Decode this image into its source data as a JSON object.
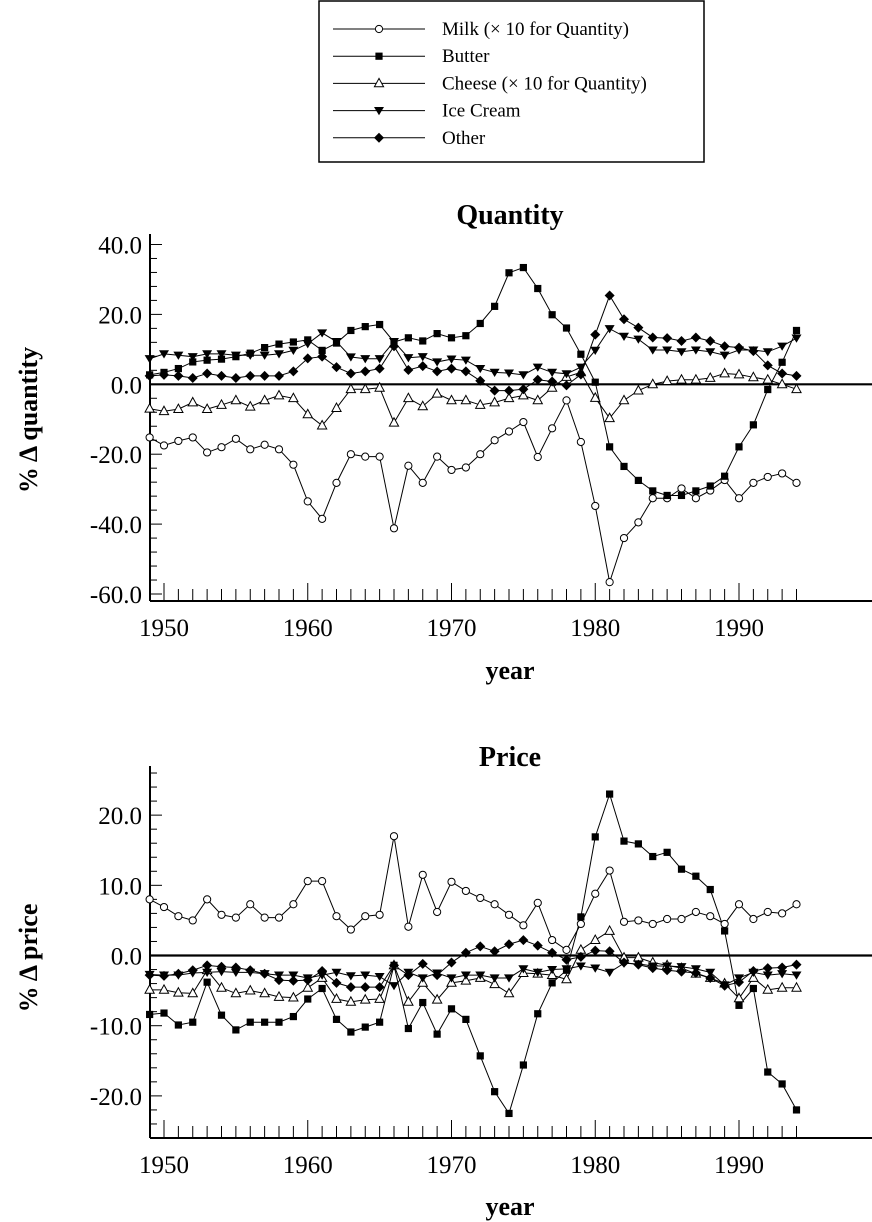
{
  "chart_data": [
    {
      "type": "line",
      "title": "Quantity",
      "xlabel": "year",
      "ylabel": "% Δ quantity",
      "xlim": [
        1948.5,
        1994.5
      ],
      "ylim": [
        -62,
        43
      ],
      "x_ticks": [
        1950,
        1960,
        1970,
        1980,
        1990
      ],
      "x_tick_labels": [
        "1950",
        "1960",
        "1970",
        "1980",
        "1990"
      ],
      "y_ticks": [
        -60,
        -40,
        -20,
        0,
        20,
        40
      ],
      "y_tick_labels": [
        "-60.0",
        "-40.0",
        "-20.0",
        "0.0",
        "20.0",
        "40.0"
      ],
      "grid": false,
      "zero_line": true,
      "x": [
        1949,
        1950,
        1951,
        1952,
        1953,
        1954,
        1955,
        1956,
        1957,
        1958,
        1959,
        1960,
        1961,
        1962,
        1963,
        1964,
        1965,
        1966,
        1967,
        1968,
        1969,
        1970,
        1971,
        1972,
        1973,
        1974,
        1975,
        1976,
        1977,
        1978,
        1979,
        1980,
        1981,
        1982,
        1983,
        1984,
        1985,
        1986,
        1987,
        1988,
        1989,
        1990,
        1991,
        1992,
        1993,
        1994
      ],
      "series": [
        {
          "name": "Milk  (×  10 for Quantity)",
          "marker": "circle-open",
          "values": [
            -15.2,
            -17.5,
            -16.2,
            -15.2,
            -19.5,
            -18,
            -15.6,
            -18.6,
            -17.3,
            -18.6,
            -23,
            -33.5,
            -38.5,
            -28.2,
            -20,
            -20.7,
            -20.7,
            -41.2,
            -23.3,
            -28.2,
            -20.7,
            -24.5,
            -23.8,
            -20,
            -16,
            -13.5,
            -10.8,
            -20.8,
            -12.6,
            -4.6,
            -16.5,
            -34.8,
            -56.6,
            -44,
            -39.5,
            -32.6,
            -32.6,
            -29.8,
            -32.6,
            -30.4,
            -27.4,
            -32.6,
            -28.2,
            -26.5,
            -25.5,
            -28.2
          ]
        },
        {
          "name": "Butter",
          "marker": "square-filled",
          "values": [
            2.7,
            3.4,
            4.5,
            6.4,
            6.9,
            7.2,
            7.9,
            8.9,
            10.5,
            11.5,
            12.1,
            12.7,
            9.7,
            11.8,
            15.4,
            16.5,
            17.1,
            12.1,
            13.3,
            12.4,
            14.5,
            13.3,
            13.9,
            17.4,
            22.3,
            31.9,
            33.4,
            27.4,
            19.9,
            16.1,
            8.6,
            0.6,
            -17.9,
            -23.5,
            -27.5,
            -30.5,
            -31.8,
            -31.8,
            -30.5,
            -29.1,
            -26.3,
            -17.9,
            -11.6,
            -1.5,
            6.3,
            15.4
          ]
        },
        {
          "name": "Cheese  (×  10 for Quantity)",
          "marker": "triangle-up-open",
          "values": [
            -7,
            -7.7,
            -7.1,
            -5.2,
            -7.1,
            -5.9,
            -4.6,
            -6.4,
            -4.6,
            -3.2,
            -4,
            -8.6,
            -11.8,
            -6.8,
            -1.4,
            -1.4,
            -1,
            -11,
            -4,
            -6.3,
            -2.7,
            -4.6,
            -4.6,
            -5.9,
            -5.2,
            -4,
            -3.2,
            -4.6,
            -1,
            2.1,
            3.4,
            -3.9,
            -9.7,
            -4.6,
            -1.8,
            0,
            0.9,
            1.3,
            1.3,
            1.8,
            3.1,
            2.8,
            2,
            1.3,
            0,
            -1.4
          ]
        },
        {
          "name": "Ice Cream",
          "marker": "triangle-down-filled",
          "values": [
            7.3,
            8.7,
            8.3,
            7.9,
            8.7,
            8.7,
            8.3,
            8.3,
            8.3,
            8.7,
            9.7,
            11.6,
            14.7,
            12.2,
            7.8,
            7.3,
            7.3,
            12.2,
            7.6,
            7.9,
            6.4,
            7.2,
            6.9,
            4.5,
            3.4,
            3.2,
            2.7,
            4.9,
            3.4,
            3,
            4.9,
            9.7,
            15.9,
            13.7,
            12.9,
            9.8,
            9.8,
            9.3,
            9.8,
            9.3,
            8.3,
            9.8,
            9.8,
            9.3,
            10.9,
            13.2
          ]
        },
        {
          "name": "Other",
          "marker": "diamond-filled",
          "values": [
            2.4,
            2.7,
            2.4,
            1.8,
            3.1,
            2.4,
            1.8,
            2.4,
            2.4,
            2.4,
            3.7,
            7.4,
            7.9,
            4.9,
            3.1,
            3.7,
            4.5,
            10.9,
            4.1,
            5.2,
            3.7,
            4.5,
            3.7,
            1,
            -1.8,
            -1.8,
            -1.4,
            1.3,
            0.8,
            -0.3,
            2.8,
            14.2,
            25.4,
            18.6,
            16.2,
            13.4,
            13.2,
            12.4,
            13.4,
            12.4,
            10.9,
            10.5,
            9.5,
            5.4,
            3.1,
            2.4
          ]
        }
      ]
    },
    {
      "type": "line",
      "title": "Price",
      "xlabel": "year",
      "ylabel": "% Δ price",
      "xlim": [
        1948.5,
        1994.5
      ],
      "ylim": [
        -26,
        27
      ],
      "x_ticks": [
        1950,
        1960,
        1970,
        1980,
        1990
      ],
      "x_tick_labels": [
        "1950",
        "1960",
        "1970",
        "1980",
        "1990"
      ],
      "y_ticks": [
        -20,
        -10,
        0,
        10,
        20
      ],
      "y_tick_labels": [
        "-20.0",
        "-10.0",
        "0.0",
        "10.0",
        "20.0"
      ],
      "grid": false,
      "zero_line": true,
      "x": [
        1949,
        1950,
        1951,
        1952,
        1953,
        1954,
        1955,
        1956,
        1957,
        1958,
        1959,
        1960,
        1961,
        1962,
        1963,
        1964,
        1965,
        1966,
        1967,
        1968,
        1969,
        1970,
        1971,
        1972,
        1973,
        1974,
        1975,
        1976,
        1977,
        1978,
        1979,
        1980,
        1981,
        1982,
        1983,
        1984,
        1985,
        1986,
        1987,
        1988,
        1989,
        1990,
        1991,
        1992,
        1993,
        1994
      ],
      "series": [
        {
          "name": "Milk  (×  10 for Quantity)",
          "marker": "circle-open",
          "values": [
            8,
            6.9,
            5.6,
            5,
            8,
            5.8,
            5.4,
            7.3,
            5.4,
            5.4,
            7.3,
            10.6,
            10.6,
            5.6,
            3.7,
            5.6,
            5.8,
            17,
            4.1,
            11.5,
            6.2,
            10.5,
            9.2,
            8.2,
            7.3,
            5.8,
            4.3,
            7.5,
            2.2,
            0.8,
            4.5,
            8.8,
            12.1,
            4.8,
            5,
            4.5,
            5.2,
            5.2,
            6.2,
            5.6,
            4.5,
            7.3,
            5.2,
            6.2,
            6,
            7.3
          ]
        },
        {
          "name": "Butter",
          "marker": "square-filled",
          "values": [
            -8.4,
            -8.2,
            -9.9,
            -9.5,
            -3.8,
            -8.5,
            -10.6,
            -9.5,
            -9.5,
            -9.5,
            -8.7,
            -6.2,
            -4.7,
            -9.1,
            -10.9,
            -10.2,
            -9.5,
            -1.4,
            -10.4,
            -6.7,
            -11.2,
            -7.6,
            -9.1,
            -14.3,
            -19.4,
            -22.5,
            -15.6,
            -8.3,
            -3.9,
            -2.1,
            5.5,
            16.9,
            23,
            16.3,
            15.9,
            14.1,
            14.7,
            12.3,
            11.3,
            9.4,
            3.5,
            -7.1,
            -4.7,
            -16.6,
            -18.3,
            -22
          ]
        },
        {
          "name": "Cheese  (×  10 for Quantity)",
          "marker": "triangle-up-open",
          "values": [
            -4.9,
            -4.9,
            -5.3,
            -5.4,
            -2.1,
            -4.6,
            -5.4,
            -5,
            -5.4,
            -5.9,
            -6,
            -4.6,
            -3.2,
            -6.2,
            -6.6,
            -6.3,
            -6.2,
            -1.4,
            -6.6,
            -3.9,
            -6.3,
            -3.9,
            -3.6,
            -3.2,
            -4.1,
            -5.4,
            -2.5,
            -2.6,
            -2.8,
            -3.4,
            0.8,
            2.2,
            3.5,
            -0.3,
            -0.3,
            -1,
            -1.4,
            -1.8,
            -2.6,
            -3.2,
            -4,
            -6.1,
            -3.2,
            -4.9,
            -4.6,
            -4.6
          ]
        },
        {
          "name": "Ice Cream",
          "marker": "triangle-down-filled",
          "values": [
            -2.7,
            -2.8,
            -2.8,
            -2.5,
            -2.4,
            -2.3,
            -2.4,
            -2.4,
            -2.6,
            -2.8,
            -2.8,
            -3.2,
            -2.8,
            -2.4,
            -2.9,
            -2.8,
            -3,
            -4.3,
            -2.4,
            -3.2,
            -2.5,
            -3.2,
            -2.8,
            -2.8,
            -3.2,
            -3.2,
            -1.9,
            -2.4,
            -2,
            -1.9,
            -1.5,
            -1.8,
            -2.4,
            -1.1,
            -1.2,
            -1.5,
            -1.5,
            -1.6,
            -1.9,
            -2.4,
            -4.2,
            -3.2,
            -2.4,
            -2.8,
            -2.6,
            -2.8
          ]
        },
        {
          "name": "Other",
          "marker": "diamond-filled",
          "values": [
            -2.8,
            -2.9,
            -2.6,
            -2.1,
            -1.4,
            -1.6,
            -1.7,
            -2.1,
            -2.6,
            -3.5,
            -3.6,
            -3.5,
            -2.2,
            -3.9,
            -4.5,
            -4.5,
            -4.5,
            -1.4,
            -2.8,
            -1.2,
            -2.8,
            -1,
            0.4,
            1.3,
            0.6,
            1.6,
            2.2,
            1.4,
            0.4,
            -0.6,
            -0.2,
            0.7,
            0.6,
            -1,
            -1.3,
            -1.8,
            -2.1,
            -2.3,
            -2.5,
            -3.2,
            -4.3,
            -3.8,
            -2.2,
            -1.8,
            -1.7,
            -1.3
          ]
        }
      ]
    }
  ]
}
